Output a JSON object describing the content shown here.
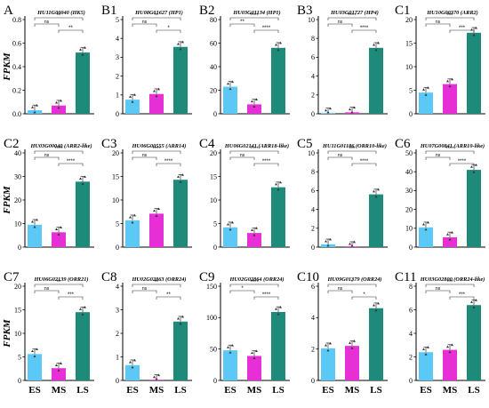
{
  "colors": {
    "ES": "#5bc8f5",
    "MS": "#e630d6",
    "LS": "#1e8a7a"
  },
  "y_axis_label": "FPKM",
  "categories": [
    "ES",
    "MS",
    "LS"
  ],
  "chart_data": [
    {
      "type": "bar",
      "letter": "A",
      "title": "HU11G00040 (HK5)",
      "categories": [
        "ES",
        "MS",
        "LS"
      ],
      "values": [
        0.03,
        0.07,
        0.52
      ],
      "ylim": [
        0,
        0.8
      ],
      "yticks": [
        "0.0",
        "0.2",
        "0.4",
        "0.6",
        "0.8"
      ],
      "ylabel": "FPKM",
      "sig": [
        {
          "a": 1,
          "b": 2,
          "label": "**"
        },
        {
          "a": 0,
          "b": 1,
          "label": "ns"
        },
        {
          "a": 0,
          "b": 2,
          "label": "**"
        }
      ]
    },
    {
      "type": "bar",
      "letter": "B1",
      "title": "HU08G01627 (HP1)",
      "categories": [
        "ES",
        "MS",
        "LS"
      ],
      "values": [
        0.75,
        1.05,
        3.55
      ],
      "ylim": [
        0,
        5
      ],
      "yticks": [
        "0",
        "1",
        "2",
        "3",
        "4",
        "5"
      ],
      "sig": [
        {
          "a": 1,
          "b": 2,
          "label": "*"
        },
        {
          "a": 0,
          "b": 1,
          "label": "ns"
        },
        {
          "a": 0,
          "b": 2,
          "label": "**"
        }
      ]
    },
    {
      "type": "bar",
      "letter": "B2",
      "title": "HU03G01134 (HP1)",
      "categories": [
        "ES",
        "MS",
        "LS"
      ],
      "values": [
        23,
        8,
        56
      ],
      "ylim": [
        0,
        80
      ],
      "yticks": [
        "0",
        "20",
        "40",
        "60",
        "80"
      ],
      "sig": [
        {
          "a": 1,
          "b": 2,
          "label": "****"
        },
        {
          "a": 0,
          "b": 1,
          "label": "**"
        },
        {
          "a": 0,
          "b": 2,
          "label": "****"
        }
      ]
    },
    {
      "type": "bar",
      "letter": "B3",
      "title": "HU03G01727 (HP4)",
      "categories": [
        "ES",
        "MS",
        "LS"
      ],
      "values": [
        0.05,
        0.15,
        7.0
      ],
      "ylim": [
        0,
        10
      ],
      "yticks": [
        "0",
        "2",
        "4",
        "6",
        "8",
        "10"
      ],
      "sig": [
        {
          "a": 1,
          "b": 2,
          "label": "****"
        },
        {
          "a": 0,
          "b": 1,
          "label": "ns"
        },
        {
          "a": 0,
          "b": 2,
          "label": "****"
        }
      ]
    },
    {
      "type": "bar",
      "letter": "C1",
      "title": "HU10G00370 (ARR2)",
      "categories": [
        "ES",
        "MS",
        "LS"
      ],
      "values": [
        4.5,
        6.3,
        17.2
      ],
      "ylim": [
        0,
        20
      ],
      "yticks": [
        "0",
        "5",
        "10",
        "15",
        "20"
      ],
      "sig": [
        {
          "a": 1,
          "b": 2,
          "label": "***"
        },
        {
          "a": 0,
          "b": 1,
          "label": "ns"
        },
        {
          "a": 0,
          "b": 2,
          "label": "***"
        }
      ]
    },
    {
      "type": "bar",
      "letter": "C2",
      "title": "HU03G00040 (ARR2-like)",
      "categories": [
        "ES",
        "MS",
        "LS"
      ],
      "values": [
        9.5,
        6.3,
        27.8
      ],
      "ylim": [
        0,
        40
      ],
      "yticks": [
        "0",
        "10",
        "20",
        "30",
        "40"
      ],
      "ylabel": "FPKM",
      "sig": [
        {
          "a": 1,
          "b": 2,
          "label": "****"
        },
        {
          "a": 0,
          "b": 1,
          "label": "ns"
        },
        {
          "a": 0,
          "b": 2,
          "label": "****"
        }
      ]
    },
    {
      "type": "bar",
      "letter": "C3",
      "title": "HU06G00555 (ARR14)",
      "categories": [
        "ES",
        "MS",
        "LS"
      ],
      "values": [
        5.7,
        7.1,
        14.3
      ],
      "ylim": [
        0,
        20
      ],
      "yticks": [
        "0",
        "5",
        "10",
        "15",
        "20"
      ],
      "sig": [
        {
          "a": 1,
          "b": 2,
          "label": "****"
        },
        {
          "a": 0,
          "b": 1,
          "label": "ns"
        },
        {
          "a": 0,
          "b": 2,
          "label": "****"
        }
      ]
    },
    {
      "type": "bar",
      "letter": "C4",
      "title": "HU06G02141 (ARR18-like)",
      "categories": [
        "ES",
        "MS",
        "LS"
      ],
      "values": [
        4.2,
        3.0,
        12.7
      ],
      "ylim": [
        0,
        20
      ],
      "yticks": [
        "0",
        "5",
        "10",
        "15",
        "20"
      ],
      "sig": [
        {
          "a": 1,
          "b": 2,
          "label": "****"
        },
        {
          "a": 0,
          "b": 1,
          "label": "ns"
        },
        {
          "a": 0,
          "b": 2,
          "label": "****"
        }
      ]
    },
    {
      "type": "bar",
      "letter": "C5",
      "title": "HU11G01186 (ORR10-like)",
      "categories": [
        "ES",
        "MS",
        "LS"
      ],
      "values": [
        0.3,
        0.02,
        5.6
      ],
      "ylim": [
        0,
        10
      ],
      "yticks": [
        "0",
        "2",
        "4",
        "6",
        "8",
        "10"
      ],
      "sig": [
        {
          "a": 1,
          "b": 2,
          "label": "****"
        },
        {
          "a": 0,
          "b": 1,
          "label": "ns"
        },
        {
          "a": 0,
          "b": 2,
          "label": "***"
        }
      ]
    },
    {
      "type": "bar",
      "letter": "C6",
      "title": "HU07G00841 (ARR10-like)",
      "categories": [
        "ES",
        "MS",
        "LS"
      ],
      "values": [
        10.5,
        5.2,
        41
      ],
      "ylim": [
        0,
        50
      ],
      "yticks": [
        "0",
        "10",
        "20",
        "30",
        "40",
        "50"
      ],
      "sig": [
        {
          "a": 1,
          "b": 2,
          "label": "****"
        },
        {
          "a": 0,
          "b": 1,
          "label": "ns"
        },
        {
          "a": 0,
          "b": 2,
          "label": "****"
        }
      ]
    },
    {
      "type": "bar",
      "letter": "C7",
      "title": "HU06G02139 (ORR21)",
      "categories": [
        "ES",
        "MS",
        "LS"
      ],
      "values": [
        5.6,
        2.6,
        14.5
      ],
      "ylim": [
        0,
        20
      ],
      "yticks": [
        "0",
        "5",
        "10",
        "15",
        "20"
      ],
      "ylabel": "FPKM",
      "sig": [
        {
          "a": 1,
          "b": 2,
          "label": "***"
        },
        {
          "a": 0,
          "b": 1,
          "label": "ns"
        },
        {
          "a": 0,
          "b": 2,
          "label": "**"
        }
      ]
    },
    {
      "type": "bar",
      "letter": "C8",
      "title": "HU02G02863 (ORR24)",
      "categories": [
        "ES",
        "MS",
        "LS"
      ],
      "values": [
        0.65,
        0.02,
        2.5
      ],
      "ylim": [
        0,
        4
      ],
      "yticks": [
        "0",
        "1",
        "2",
        "3",
        "4"
      ],
      "sig": [
        {
          "a": 1,
          "b": 2,
          "label": "**"
        },
        {
          "a": 0,
          "b": 1,
          "label": "ns"
        },
        {
          "a": 0,
          "b": 2,
          "label": "**"
        }
      ]
    },
    {
      "type": "bar",
      "letter": "C9",
      "title": "HU02G02864 (ORR24)",
      "categories": [
        "ES",
        "MS",
        "LS"
      ],
      "values": [
        48,
        39,
        109
      ],
      "ylim": [
        0,
        150
      ],
      "yticks": [
        "0",
        "50",
        "100",
        "150"
      ],
      "sig": [
        {
          "a": 1,
          "b": 2,
          "label": "****"
        },
        {
          "a": 0,
          "b": 1,
          "label": "*"
        },
        {
          "a": 0,
          "b": 2,
          "label": "****"
        }
      ]
    },
    {
      "type": "bar",
      "letter": "C10",
      "title": "HU09G01379 (ORR24)",
      "categories": [
        "ES",
        "MS",
        "LS"
      ],
      "values": [
        2.05,
        2.2,
        4.6
      ],
      "ylim": [
        0,
        6
      ],
      "yticks": [
        "0",
        "2",
        "4",
        "6"
      ],
      "sig": [
        {
          "a": 1,
          "b": 2,
          "label": "*"
        },
        {
          "a": 0,
          "b": 1,
          "label": "ns"
        },
        {
          "a": 0,
          "b": 2,
          "label": "*"
        }
      ]
    },
    {
      "type": "bar",
      "letter": "C11",
      "title": "HU03G02800 (ORR24-like)",
      "categories": [
        "ES",
        "MS",
        "LS"
      ],
      "values": [
        2.4,
        2.6,
        6.4
      ],
      "ylim": [
        0,
        8
      ],
      "yticks": [
        "0",
        "2",
        "4",
        "6",
        "8"
      ],
      "sig": [
        {
          "a": 1,
          "b": 2,
          "label": "***"
        },
        {
          "a": 0,
          "b": 1,
          "label": "ns"
        },
        {
          "a": 0,
          "b": 2,
          "label": "***"
        }
      ]
    }
  ]
}
